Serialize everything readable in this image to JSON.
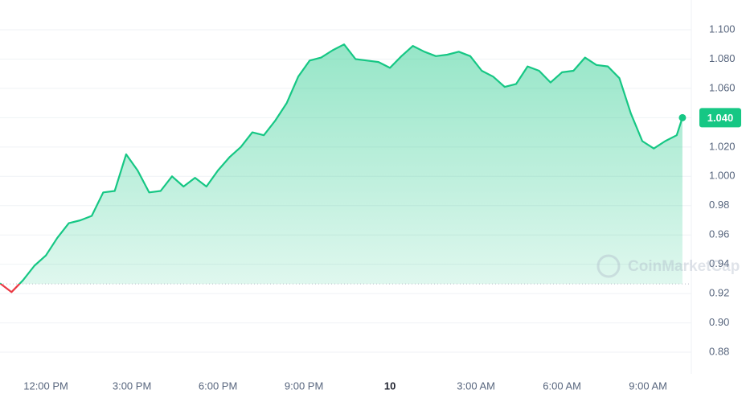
{
  "chart_data": {
    "type": "line",
    "x": [
      10.4,
      10.8,
      11.2,
      11.6,
      12.0,
      12.4,
      12.8,
      13.2,
      13.6,
      14.0,
      14.4,
      14.8,
      15.2,
      15.6,
      16.0,
      16.4,
      16.8,
      17.2,
      17.6,
      18.0,
      18.4,
      18.8,
      19.2,
      19.6,
      20.0,
      20.4,
      20.8,
      21.2,
      21.6,
      22.0,
      22.4,
      22.8,
      23.2,
      23.6,
      24.0,
      24.4,
      24.8,
      25.2,
      25.6,
      26.0,
      26.4,
      26.8,
      27.2,
      27.6,
      28.0,
      28.4,
      28.8,
      29.2,
      29.6,
      30.0,
      30.4,
      30.8,
      31.2,
      31.6,
      32.0,
      32.4,
      32.8,
      33.2,
      33.6,
      34.0,
      34.2
    ],
    "values": [
      0.927,
      0.921,
      0.929,
      0.939,
      0.946,
      0.958,
      0.968,
      0.97,
      0.973,
      0.989,
      0.99,
      1.015,
      1.004,
      0.989,
      0.99,
      1.0,
      0.993,
      0.999,
      0.993,
      1.004,
      1.013,
      1.02,
      1.03,
      1.028,
      1.038,
      1.05,
      1.068,
      1.079,
      1.081,
      1.086,
      1.09,
      1.08,
      1.079,
      1.078,
      1.074,
      1.082,
      1.089,
      1.085,
      1.082,
      1.083,
      1.085,
      1.082,
      1.072,
      1.068,
      1.061,
      1.063,
      1.075,
      1.072,
      1.064,
      1.071,
      1.072,
      1.081,
      1.076,
      1.075,
      1.067,
      1.043,
      1.024,
      1.019,
      1.024,
      1.028,
      1.04
    ],
    "color": "#16c784",
    "below_color": "#ea3943",
    "baseline": 0.9266,
    "current_price": {
      "value": 1.04,
      "label": "1.040"
    },
    "xlim": [
      10.4,
      34.51
    ],
    "ylim": [
      0.8652,
      1.1203
    ],
    "xticks": [
      {
        "value": 12,
        "label": "12:00 PM"
      },
      {
        "value": 15,
        "label": "3:00 PM"
      },
      {
        "value": 18,
        "label": "6:00 PM"
      },
      {
        "value": 21,
        "label": "9:00 PM"
      },
      {
        "value": 24,
        "label": "10"
      },
      {
        "value": 27,
        "label": "3:00 AM"
      },
      {
        "value": 30,
        "label": "6:00 AM"
      },
      {
        "value": 33,
        "label": "9:00 AM"
      }
    ],
    "yticks": [
      0.88,
      {
        "value": 0.9,
        "label": "0.90"
      },
      0.92,
      0.94,
      0.96,
      0.98,
      {
        "value": 1.0,
        "label": "1.000"
      },
      {
        "value": 1.02,
        "label": "1.020"
      },
      {
        "value": 1.04,
        "label": "1.040"
      },
      {
        "value": 1.06,
        "label": "1.060"
      },
      {
        "value": 1.08,
        "label": "1.080"
      },
      {
        "value": 1.1,
        "label": "1.100"
      }
    ],
    "grid": true,
    "watermark": "CoinMarketCap"
  }
}
